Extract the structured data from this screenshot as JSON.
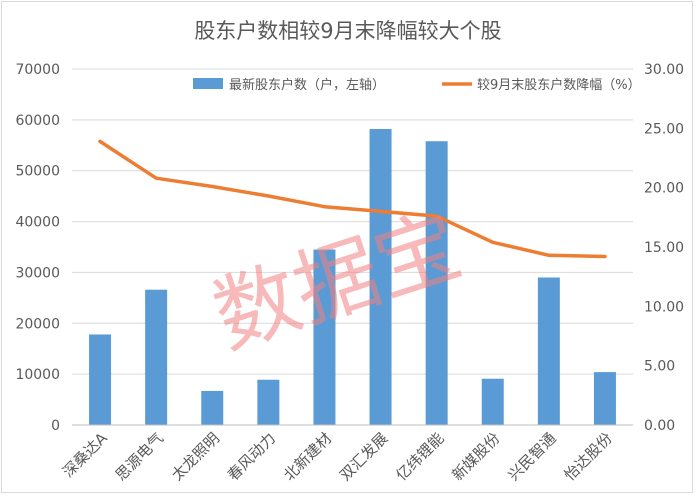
{
  "chart_data": {
    "type": "bar",
    "title": "股东户数相较9月末降幅较大个股",
    "categories": [
      "深桑达A",
      "思源电气",
      "太龙照明",
      "春风动力",
      "北新建材",
      "双汇发展",
      "亿纬锂能",
      "新媒股份",
      "兴民智通",
      "怡达股份"
    ],
    "series": [
      {
        "name": "最新股东户数（户，左轴）",
        "type": "bar",
        "axis": "left",
        "color": "#5b9bd5",
        "values": [
          17800,
          26600,
          6700,
          8900,
          34500,
          58200,
          55800,
          9100,
          29000,
          10400
        ]
      },
      {
        "name": "较9月末股东户数降幅（%）",
        "type": "line",
        "axis": "right",
        "color": "#ed7d31",
        "values": [
          23.9,
          20.8,
          20.1,
          19.3,
          18.4,
          18.0,
          17.6,
          15.4,
          14.3,
          14.2
        ]
      }
    ],
    "y_left": {
      "min": 0,
      "max": 70000,
      "ticks": [
        "0",
        "10000",
        "20000",
        "30000",
        "40000",
        "50000",
        "60000",
        "70000"
      ]
    },
    "y_right": {
      "min": 0,
      "max": 30,
      "ticks": [
        "0.00",
        "5.00",
        "10.00",
        "15.00",
        "20.00",
        "25.00",
        "30.00"
      ]
    },
    "grid": true,
    "legend_position": "top",
    "watermark": "数据宝"
  }
}
